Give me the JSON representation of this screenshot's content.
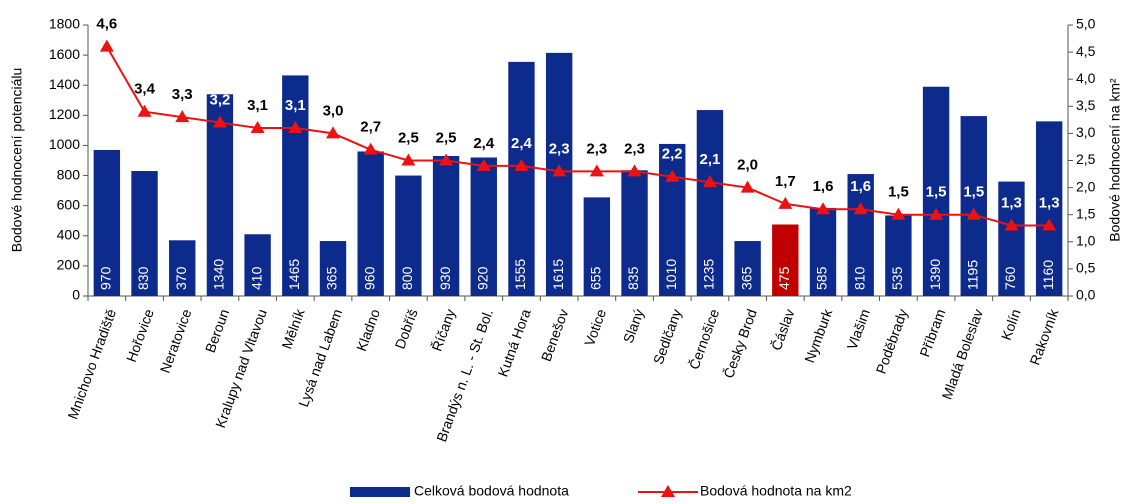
{
  "chart_data": {
    "type": "bar-line",
    "y_label": "Bodové hodnocení potenciálu",
    "y2_label": "Bodové hodnocení na km²",
    "categories": [
      "Mnichovo Hradiště",
      "Hořovice",
      "Neratovice",
      "Beroun",
      "Kralupy nad Vltavou",
      "Mělník",
      "Lysá nad Labem",
      "Kladno",
      "Dobříš",
      "Říčany",
      "Brandýs n. L. - St. Bol.",
      "Kutná Hora",
      "Benešov",
      "Votice",
      "Slaný",
      "Sedlčany",
      "Černošice",
      "Česky Brod",
      "Čáslav",
      "Nymburk",
      "Vlašim",
      "Poděbrady",
      "Příbram",
      "Mladá Boleslav",
      "Kolín",
      "Rakovník"
    ],
    "series": [
      {
        "name": "Celková bodová hodnota",
        "color": "#0d2b8c",
        "colors": [
          "#0d2b8c",
          "#0d2b8c",
          "#0d2b8c",
          "#0d2b8c",
          "#0d2b8c",
          "#0d2b8c",
          "#0d2b8c",
          "#0d2b8c",
          "#0d2b8c",
          "#0d2b8c",
          "#0d2b8c",
          "#0d2b8c",
          "#0d2b8c",
          "#0d2b8c",
          "#0d2b8c",
          "#0d2b8c",
          "#0d2b8c",
          "#0d2b8c",
          "#c00000",
          "#0d2b8c",
          "#0d2b8c",
          "#0d2b8c",
          "#0d2b8c",
          "#0d2b8c",
          "#0d2b8c",
          "#0d2b8c"
        ],
        "values": [
          970,
          830,
          370,
          1340,
          410,
          1465,
          365,
          960,
          800,
          930,
          920,
          1555,
          1615,
          655,
          835,
          1010,
          1235,
          365,
          475,
          585,
          810,
          535,
          1390,
          1195,
          760,
          1160
        ]
      },
      {
        "name": "Bodová hodnota na km2",
        "color": "#ee1111",
        "axis": "y2",
        "values": [
          4.6,
          3.4,
          3.3,
          3.2,
          3.1,
          3.1,
          3.0,
          2.7,
          2.5,
          2.5,
          2.4,
          2.4,
          2.3,
          2.3,
          2.3,
          2.2,
          2.1,
          2.0,
          1.7,
          1.6,
          1.6,
          1.5,
          1.5,
          1.5,
          1.3,
          1.3
        ],
        "value_labels": [
          "4,6",
          "3,4",
          "3,3",
          "3,2",
          "3,1",
          "3,1",
          "3,0",
          "2,7",
          "2,5",
          "2,5",
          "2,4",
          "2,4",
          "2,3",
          "2,3",
          "2,3",
          "2,2",
          "2,1",
          "2,0",
          "1,7",
          "1,6",
          "1,6",
          "1,5",
          "1,5",
          "1,5",
          "1,3",
          "1,3"
        ]
      }
    ],
    "ylim": [
      0,
      1800
    ],
    "yticks": [
      0,
      200,
      400,
      600,
      800,
      1000,
      1200,
      1400,
      1600,
      1800
    ],
    "y2lim": [
      0,
      5
    ],
    "y2ticks": [
      {
        "value": 0,
        "label": "0,0"
      },
      {
        "value": 0.5,
        "label": "0,5"
      },
      {
        "value": 1,
        "label": "1,0"
      },
      {
        "value": 1.5,
        "label": "1,5"
      },
      {
        "value": 2,
        "label": "2,0"
      },
      {
        "value": 2.5,
        "label": "2,5"
      },
      {
        "value": 3,
        "label": "3,0"
      },
      {
        "value": 3.5,
        "label": "3,5"
      },
      {
        "value": 4,
        "label": "4,0"
      },
      {
        "value": 4.5,
        "label": "4,5"
      },
      {
        "value": 5,
        "label": "5,0"
      }
    ],
    "legend": "bottom"
  }
}
